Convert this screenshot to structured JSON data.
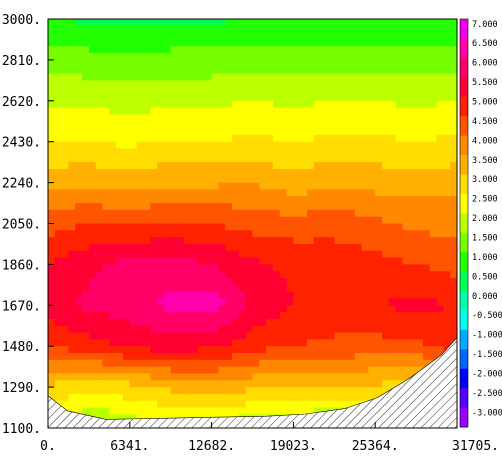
{
  "chart_data": {
    "type": "heatmap",
    "title": "",
    "xlabel": "",
    "ylabel": "",
    "xlim": [
      0,
      31705
    ],
    "ylim": [
      1100,
      3000
    ],
    "x_ticks": [
      "0.",
      "6341.",
      "12682.",
      "19023.",
      "25364.",
      "31705."
    ],
    "y_ticks": [
      "3000.",
      "2810.",
      "2620.",
      "2430.",
      "2240.",
      "2050.",
      "1860.",
      "1670.",
      "1480.",
      "1290.",
      "1100."
    ],
    "colorbar": {
      "labels": [
        "7.000",
        "6.500",
        "6.000",
        "5.500",
        "5.000",
        "4.500",
        "4.000",
        "3.500",
        "3.000",
        "2.500",
        "2.000",
        "1.500",
        "1.000",
        "0.500",
        "0.000",
        "-0.500",
        "-1.000",
        "-1.500",
        "-2.000",
        "-2.500",
        "-3.000"
      ],
      "levels": [
        7.0,
        6.5,
        6.0,
        5.5,
        5.0,
        4.5,
        4.0,
        3.5,
        3.0,
        2.5,
        2.0,
        1.5,
        1.0,
        0.5,
        0.0,
        -0.5,
        -1.0,
        -1.5,
        -2.0,
        -2.5,
        -3.0
      ],
      "colors": [
        "#ee00ee",
        "#ff00aa",
        "#ff0066",
        "#ff0033",
        "#ff2200",
        "#ff5500",
        "#ff8800",
        "#ffb000",
        "#ffdd00",
        "#ffff00",
        "#bbff00",
        "#77ff00",
        "#22ff00",
        "#00ff55",
        "#00ffaa",
        "#00ffee",
        "#00aaff",
        "#0066ff",
        "#0000ff",
        "#5500ff",
        "#9900ff"
      ]
    },
    "x": [
      0,
      3170,
      6341,
      9511,
      12682,
      15852,
      19023,
      22193,
      25364,
      28534,
      31705
    ],
    "y": [
      3000,
      2810,
      2620,
      2430,
      2240,
      2050,
      1860,
      1670,
      1480,
      1290,
      1100
    ],
    "values": [
      [
        1.0,
        0.9,
        0.8,
        0.9,
        0.9,
        1.0,
        1.0,
        1.0,
        1.0,
        1.0,
        1.0
      ],
      [
        1.8,
        1.7,
        1.6,
        1.7,
        1.7,
        1.8,
        1.8,
        1.8,
        1.8,
        1.8,
        1.8
      ],
      [
        2.4,
        2.4,
        2.3,
        2.4,
        2.4,
        2.5,
        2.4,
        2.5,
        2.5,
        2.4,
        2.5
      ],
      [
        3.0,
        3.0,
        2.9,
        3.0,
        3.0,
        3.1,
        3.0,
        3.1,
        3.1,
        3.0,
        3.1
      ],
      [
        3.8,
        3.9,
        3.8,
        3.9,
        3.9,
        4.0,
        3.7,
        3.9,
        3.8,
        3.8,
        3.8
      ],
      [
        4.8,
        5.0,
        4.9,
        5.0,
        5.0,
        4.8,
        4.7,
        4.8,
        4.6,
        4.4,
        4.3
      ],
      [
        5.5,
        5.9,
        6.2,
        6.3,
        6.0,
        5.6,
        5.4,
        5.3,
        5.2,
        5.0,
        4.8
      ],
      [
        5.8,
        6.1,
        6.3,
        6.6,
        6.8,
        5.9,
        5.5,
        5.3,
        5.5,
        5.6,
        5.5
      ],
      [
        5.0,
        5.3,
        5.6,
        5.8,
        5.6,
        5.2,
        5.0,
        4.9,
        4.8,
        4.9,
        5.3
      ],
      [
        3.4,
        3.2,
        3.3,
        3.6,
        3.8,
        3.6,
        3.5,
        3.5,
        3.4,
        3.2,
        3.0
      ],
      [
        2.6,
        1.8,
        2.2,
        2.3,
        2.4,
        2.0,
        2.0,
        1.5,
        2.5,
        2.8,
        2.6
      ]
    ],
    "masked_region": "hatched",
    "colorbar_position": "right",
    "grid": false
  }
}
